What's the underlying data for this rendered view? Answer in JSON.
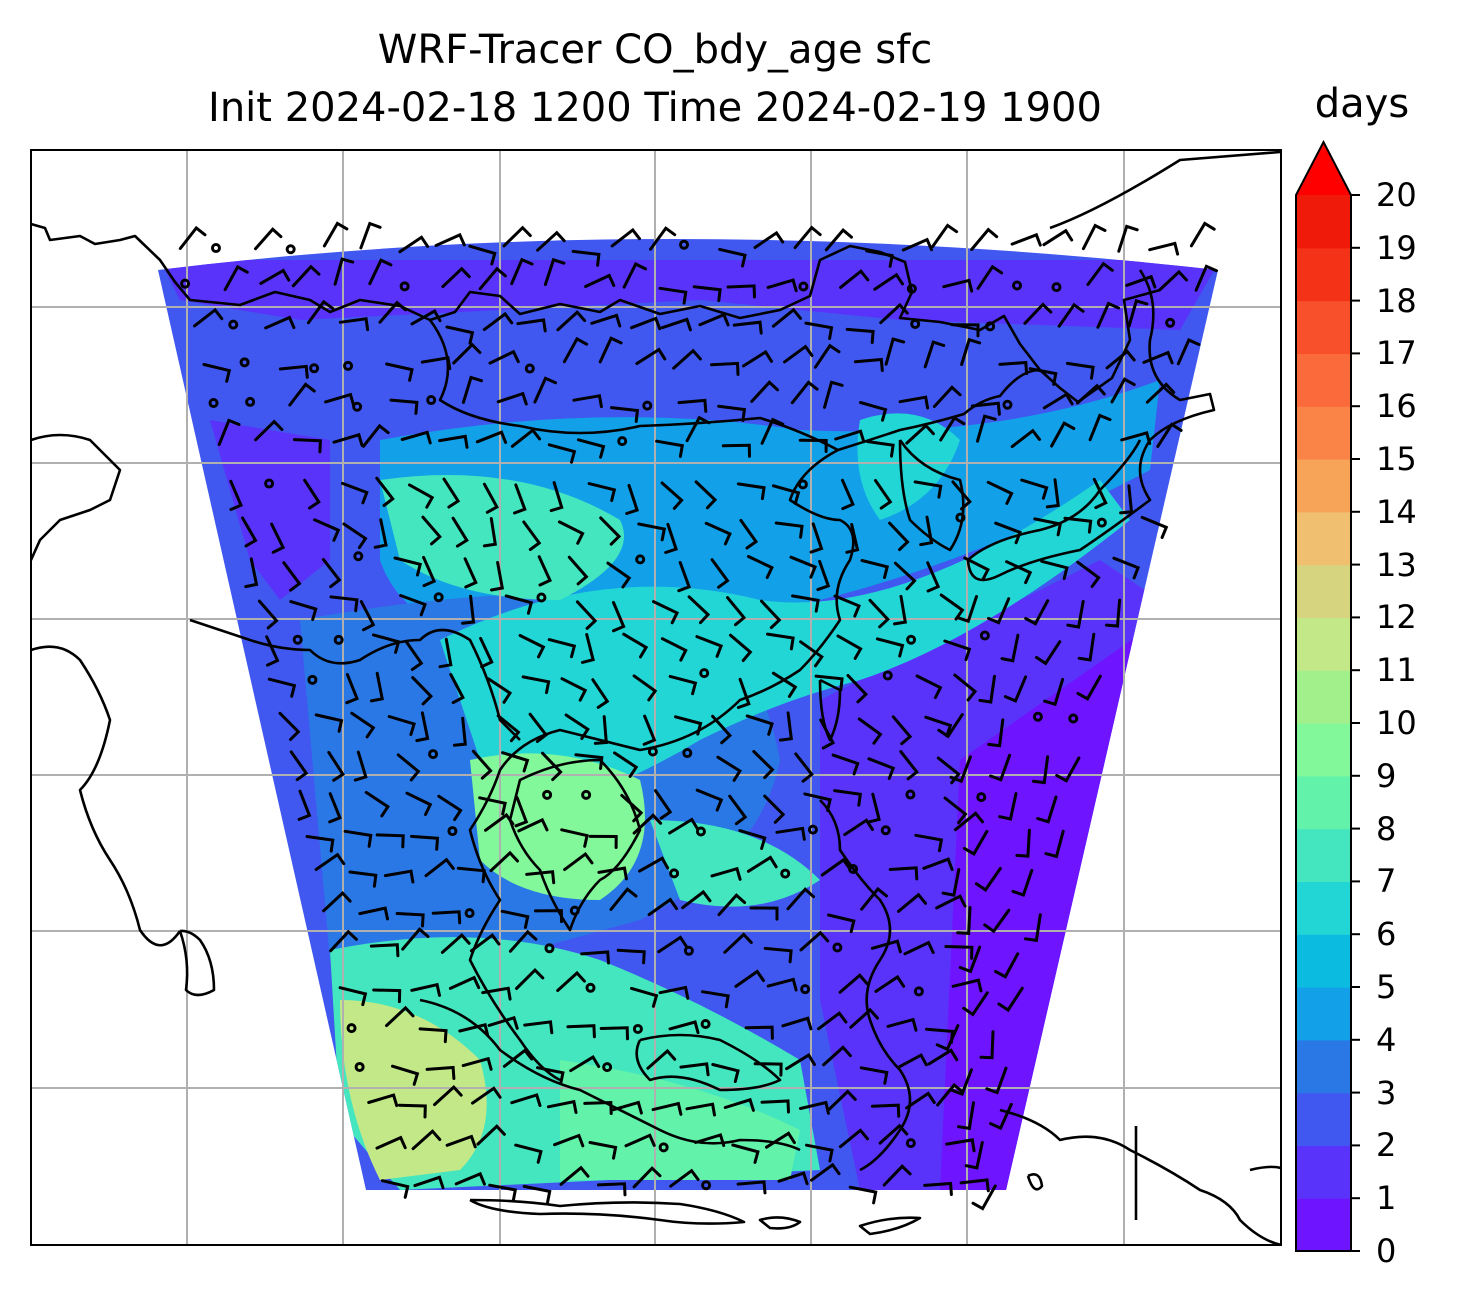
{
  "title": {
    "line1": "WRF-Tracer CO_bdy_age sfc",
    "line2": "Init 2024-02-18 1200 Time 2024-02-19 1900"
  },
  "colorbar": {
    "label": "days",
    "min": 0,
    "max": 20,
    "extend": "max",
    "ticks": [
      "0",
      "1",
      "2",
      "3",
      "4",
      "5",
      "6",
      "7",
      "8",
      "9",
      "10",
      "11",
      "12",
      "13",
      "14",
      "15",
      "16",
      "17",
      "18",
      "19",
      "20"
    ],
    "colors": [
      "#6e14fe",
      "#5a33fa",
      "#4058f0",
      "#2a78e6",
      "#12a0e8",
      "#0cbce0",
      "#22d6d6",
      "#44e6c0",
      "#62f2aa",
      "#82f89a",
      "#a2f08c",
      "#c2e888",
      "#d6d47e",
      "#f0c070",
      "#f8a458",
      "#fa8448",
      "#fa6a3a",
      "#f8502a",
      "#f43218",
      "#f01a0a"
    ],
    "overflow_color": "#ff0000"
  },
  "map": {
    "gridlines": "on",
    "coastlines": "on",
    "shading_colors": {
      "age_0_1": "#6e14fe",
      "age_1_2": "#5a33fa",
      "age_2_3": "#4058f0",
      "age_3_4": "#2a78e6",
      "age_4_5": "#12a0e8",
      "age_6_7": "#22d6d6",
      "age_7_8": "#44e6c0",
      "age_9_10": "#82f89a",
      "age_11_12": "#c2e888"
    },
    "overlay": "wind barbs"
  }
}
